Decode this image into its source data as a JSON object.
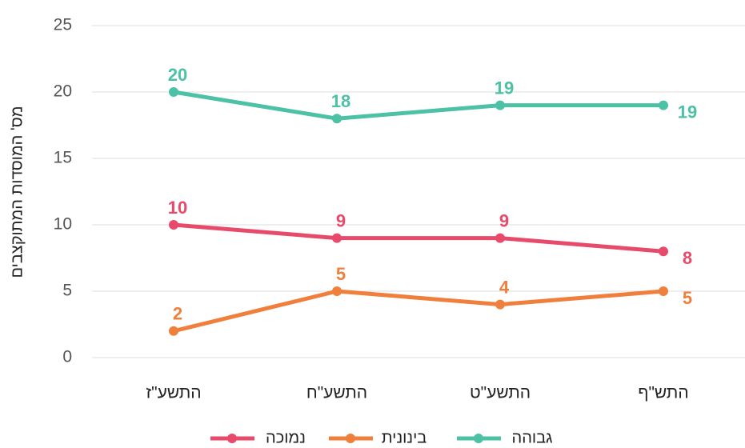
{
  "chart_data": {
    "type": "line",
    "y_label": "מס' המוסדות המתוקצבים",
    "categories": [
      "התשע\"ז",
      "התשע\"ח",
      "התשע\"ט",
      "התש\"ף"
    ],
    "series": [
      {
        "name": "נמוכה",
        "color": "#e84a6b",
        "values": [
          10,
          9,
          9,
          8
        ]
      },
      {
        "name": "בינונית",
        "color": "#f07f3c",
        "values": [
          2,
          5,
          4,
          5
        ]
      },
      {
        "name": "גבוהה",
        "color": "#4cc1a5",
        "values": [
          20,
          18,
          19,
          19
        ]
      }
    ],
    "ylim": [
      0,
      25
    ],
    "yticks": [
      0,
      5,
      10,
      15,
      20,
      25
    ],
    "grid": true,
    "legend": "bottom"
  }
}
